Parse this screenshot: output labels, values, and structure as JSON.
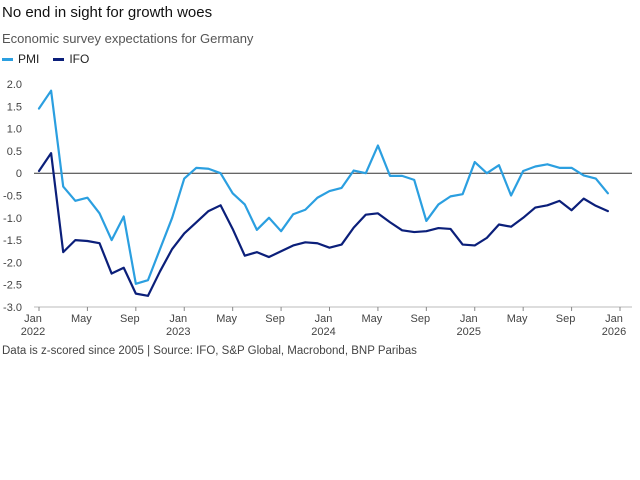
{
  "chart_data": {
    "type": "line",
    "title": "No end in sight for growth woes",
    "subtitle": "Economic survey expectations for Germany",
    "xlabel": "",
    "ylabel": "",
    "ylim": [
      -3.0,
      2.0
    ],
    "yticks": [
      "2.0",
      "1.5",
      "1.0",
      "0.5",
      "0",
      "-0.5",
      "-1.0",
      "-1.5",
      "-2.0",
      "-2.5",
      "-3.0"
    ],
    "ytick_values": [
      2.0,
      1.5,
      1.0,
      0.5,
      0,
      -0.5,
      -1.0,
      -1.5,
      -2.0,
      -2.5,
      -3.0
    ],
    "x_start": "2022-01",
    "x_months": 49,
    "xticks": [
      {
        "m": 0,
        "label": "Jan",
        "year": "2022"
      },
      {
        "m": 4,
        "label": "May",
        "year": ""
      },
      {
        "m": 8,
        "label": "Sep",
        "year": ""
      },
      {
        "m": 12,
        "label": "Jan",
        "year": "2023"
      },
      {
        "m": 16,
        "label": "May",
        "year": ""
      },
      {
        "m": 20,
        "label": "Sep",
        "year": ""
      },
      {
        "m": 24,
        "label": "Jan",
        "year": "2024"
      },
      {
        "m": 28,
        "label": "May",
        "year": ""
      },
      {
        "m": 32,
        "label": "Sep",
        "year": ""
      },
      {
        "m": 36,
        "label": "Jan",
        "year": "2025"
      },
      {
        "m": 40,
        "label": "May",
        "year": ""
      },
      {
        "m": 44,
        "label": "Sep",
        "year": ""
      },
      {
        "m": 48,
        "label": "Jan",
        "year": "2026"
      }
    ],
    "series": [
      {
        "name": "PMI",
        "color": "#2b9fe0",
        "values": [
          1.45,
          1.85,
          -0.3,
          -0.62,
          -0.55,
          -0.9,
          -1.5,
          -0.97,
          -2.48,
          -2.4,
          -1.7,
          -1.0,
          -0.12,
          0.12,
          0.1,
          0.0,
          -0.45,
          -0.7,
          -1.27,
          -1.0,
          -1.3,
          -0.92,
          -0.82,
          -0.55,
          -0.4,
          -0.33,
          0.06,
          0.0,
          0.62,
          -0.06,
          -0.06,
          -0.15,
          -1.07,
          -0.7,
          -0.52,
          -0.47,
          0.25,
          0.0,
          0.18,
          -0.5,
          0.05,
          0.15,
          0.2,
          0.12,
          0.12,
          -0.05,
          -0.12,
          -0.45
        ]
      },
      {
        "name": "IFO",
        "color": "#0b1f7a",
        "values": [
          0.05,
          0.45,
          -1.77,
          -1.5,
          -1.52,
          -1.57,
          -2.25,
          -2.12,
          -2.7,
          -2.75,
          -2.2,
          -1.7,
          -1.35,
          -1.1,
          -0.85,
          -0.72,
          -1.25,
          -1.85,
          -1.77,
          -1.88,
          -1.75,
          -1.62,
          -1.55,
          -1.57,
          -1.67,
          -1.6,
          -1.22,
          -0.93,
          -0.9,
          -1.1,
          -1.28,
          -1.32,
          -1.3,
          -1.23,
          -1.25,
          -1.6,
          -1.62,
          -1.45,
          -1.15,
          -1.2,
          -1.0,
          -0.77,
          -0.72,
          -0.62,
          -0.83,
          -0.57,
          -0.73,
          -0.85
        ]
      }
    ]
  },
  "footnote": "Data is z-scored since 2005  | Source: IFO, S&P Global, Macrobond, BNP Paribas"
}
